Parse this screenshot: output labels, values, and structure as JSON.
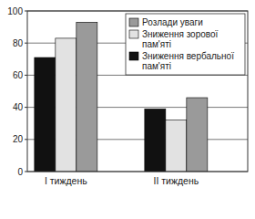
{
  "chart_data": {
    "type": "bar",
    "categories": [
      "I тиждень",
      "II тиждень"
    ],
    "series": [
      {
        "name": "Зниження вербальної пам'яті",
        "color": "#111111",
        "values": [
          71,
          39
        ]
      },
      {
        "name": "Зниження зорової пам'яті",
        "color": "#e2e2e2",
        "values": [
          83,
          32
        ]
      },
      {
        "name": "Розлади уваги",
        "color": "#9a9a9a",
        "values": [
          93,
          46
        ]
      }
    ],
    "ylim": [
      0,
      100
    ],
    "yticks": [
      0,
      20,
      40,
      60,
      80,
      100
    ],
    "grid": true,
    "legend": "upper right"
  }
}
